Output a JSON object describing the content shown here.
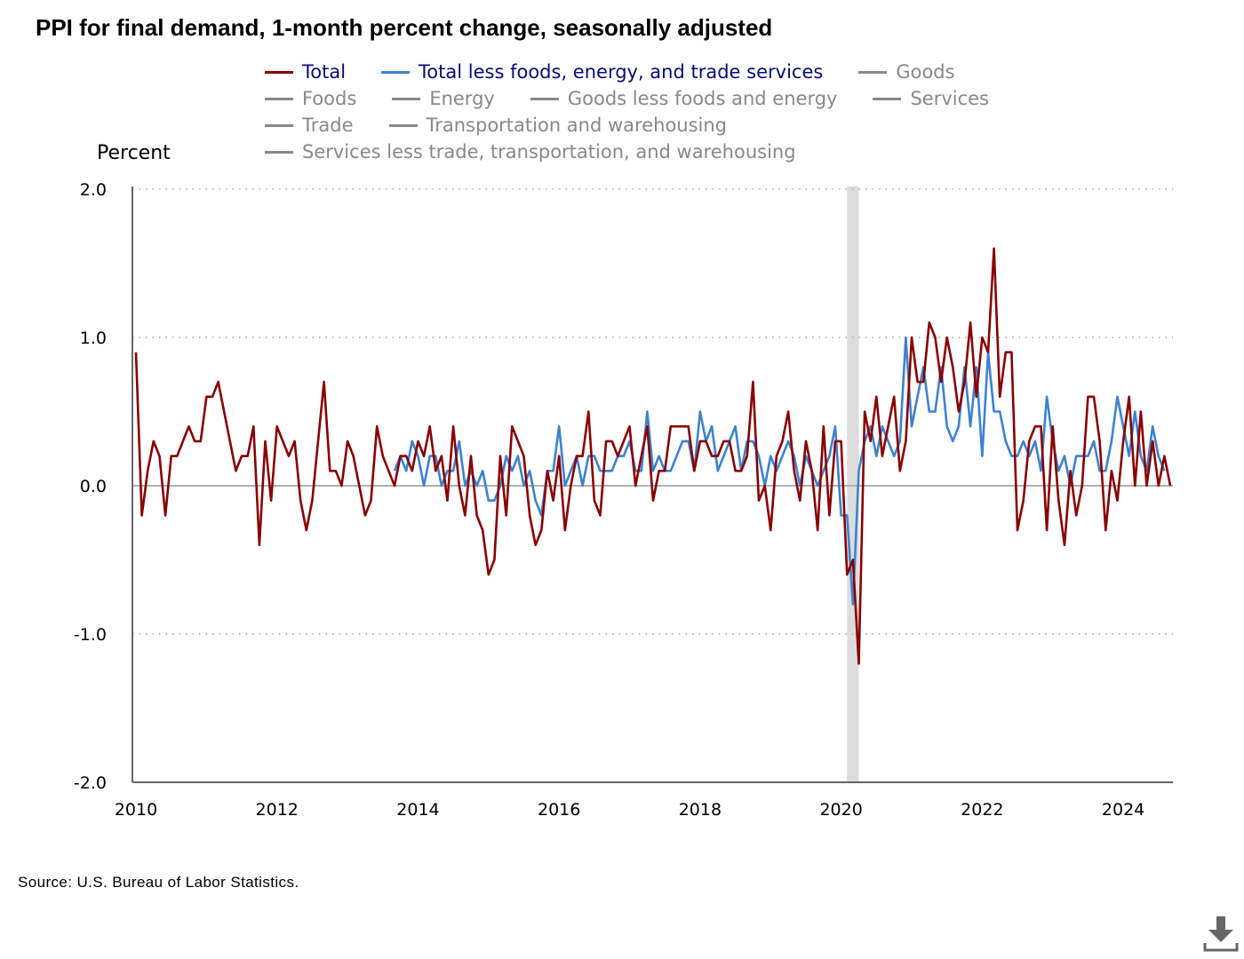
{
  "chart_data": {
    "type": "line",
    "title": "PPI for final demand, 1-month percent change, seasonally adjusted",
    "ylabel": "Percent",
    "xlabel": "",
    "ylim": [
      -2.0,
      2.0
    ],
    "x_range": [
      "2010-01",
      "2024-09"
    ],
    "y_ticks": [
      {
        "value": 2.0,
        "label": "2.0"
      },
      {
        "value": 1.0,
        "label": "1.0"
      },
      {
        "value": 0.0,
        "label": "0.0"
      },
      {
        "value": -1.0,
        "label": "-1.0"
      },
      {
        "value": -2.0,
        "label": "-2.0"
      }
    ],
    "x_ticks": [
      {
        "year": 2010,
        "label": "2010"
      },
      {
        "year": 2012,
        "label": "2012"
      },
      {
        "year": 2014,
        "label": "2014"
      },
      {
        "year": 2016,
        "label": "2016"
      },
      {
        "year": 2018,
        "label": "2018"
      },
      {
        "year": 2020,
        "label": "2020"
      },
      {
        "year": 2022,
        "label": "2022"
      },
      {
        "year": 2024,
        "label": "2024"
      }
    ],
    "grid": "horizontal dotted",
    "recession": {
      "start": "2020-02",
      "end": "2020-04"
    },
    "series": [
      {
        "name": "Total",
        "color": "#8b0000",
        "start": "2010-01",
        "values": [
          0.9,
          -0.2,
          0.1,
          0.3,
          0.2,
          -0.2,
          0.2,
          0.2,
          0.3,
          0.4,
          0.3,
          0.3,
          0.6,
          0.6,
          0.7,
          0.5,
          0.3,
          0.1,
          0.2,
          0.2,
          0.4,
          -0.4,
          0.3,
          -0.1,
          0.4,
          0.3,
          0.2,
          0.3,
          -0.1,
          -0.3,
          -0.1,
          0.3,
          0.7,
          0.1,
          0.1,
          0.0,
          0.3,
          0.2,
          0.0,
          -0.2,
          -0.1,
          0.4,
          0.2,
          0.1,
          0.0,
          0.2,
          0.2,
          0.1,
          0.3,
          0.2,
          0.4,
          0.1,
          0.2,
          -0.1,
          0.4,
          0.0,
          -0.2,
          0.2,
          -0.2,
          -0.3,
          -0.6,
          -0.5,
          0.2,
          -0.2,
          0.4,
          0.3,
          0.2,
          -0.2,
          -0.4,
          -0.3,
          0.1,
          -0.1,
          0.2,
          -0.3,
          0.0,
          0.2,
          0.2,
          0.5,
          -0.1,
          -0.2,
          0.3,
          0.3,
          0.2,
          0.3,
          0.4,
          0.0,
          0.2,
          0.4,
          -0.1,
          0.1,
          0.1,
          0.4,
          0.4,
          0.4,
          0.4,
          0.1,
          0.3,
          0.3,
          0.2,
          0.2,
          0.3,
          0.3,
          0.1,
          0.1,
          0.2,
          0.7,
          -0.1,
          0.0,
          -0.3,
          0.2,
          0.3,
          0.5,
          0.1,
          -0.1,
          0.3,
          0.1,
          -0.3,
          0.4,
          -0.2,
          0.3,
          0.3,
          -0.6,
          -0.5,
          -1.2,
          0.5,
          0.3,
          0.6,
          0.2,
          0.4,
          0.6,
          0.1,
          0.3,
          1.0,
          0.7,
          0.7,
          1.1,
          1.0,
          0.7,
          1.0,
          0.8,
          0.5,
          0.7,
          1.1,
          0.6,
          1.0,
          0.9,
          1.6,
          0.6,
          0.9,
          0.9,
          -0.3,
          -0.1,
          0.3,
          0.4,
          0.4,
          -0.3,
          0.4,
          -0.1,
          -0.4,
          0.1,
          -0.2,
          0.0,
          0.6,
          0.6,
          0.3,
          -0.3,
          0.1,
          -0.1,
          0.3,
          0.6,
          0.0,
          0.5,
          0.0,
          0.3,
          0.0,
          0.2,
          0.0
        ]
      },
      {
        "name": "Total less foods, energy, and trade services",
        "color": "#3b82d4",
        "start": "2013-09",
        "values": [
          0.1,
          0.2,
          0.1,
          0.3,
          0.2,
          0.0,
          0.2,
          0.2,
          0.0,
          0.1,
          0.1,
          0.3,
          0.0,
          0.1,
          0.0,
          0.1,
          -0.1,
          -0.1,
          0.0,
          0.2,
          0.1,
          0.2,
          0.0,
          0.1,
          -0.1,
          -0.2,
          0.1,
          0.1,
          0.4,
          0.0,
          0.1,
          0.2,
          0.0,
          0.2,
          0.2,
          0.1,
          0.1,
          0.1,
          0.2,
          0.2,
          0.3,
          0.1,
          0.1,
          0.5,
          0.1,
          0.2,
          0.1,
          0.1,
          0.2,
          0.3,
          0.3,
          0.1,
          0.5,
          0.3,
          0.4,
          0.1,
          0.2,
          0.3,
          0.4,
          0.1,
          0.3,
          0.3,
          0.2,
          0.0,
          0.2,
          0.1,
          0.2,
          0.3,
          0.2,
          0.0,
          0.2,
          0.1,
          0.0,
          0.1,
          0.2,
          0.4,
          -0.2,
          -0.2,
          -0.8,
          0.1,
          0.3,
          0.4,
          0.2,
          0.4,
          0.3,
          0.2,
          0.3,
          1.0,
          0.4,
          0.6,
          0.8,
          0.5,
          0.5,
          0.8,
          0.4,
          0.3,
          0.4,
          0.8,
          0.4,
          0.8,
          0.2,
          0.9,
          0.5,
          0.5,
          0.3,
          0.2,
          0.2,
          0.3,
          0.2,
          0.3,
          0.1,
          0.6,
          0.3,
          0.1,
          0.2,
          0.0,
          0.2,
          0.2,
          0.2,
          0.3,
          0.1,
          0.1,
          0.3,
          0.6,
          0.4,
          0.2,
          0.5,
          0.2,
          0.1,
          0.4,
          0.2,
          0.1
        ]
      }
    ],
    "legend": [
      {
        "label": "Total",
        "color": "#8b0000",
        "active": true
      },
      {
        "label": "Total less foods, energy, and trade services",
        "color": "#3b82d4",
        "active": true
      },
      {
        "label": "Goods",
        "color": "#888888",
        "active": false
      },
      {
        "label": "Foods",
        "color": "#888888",
        "active": false
      },
      {
        "label": "Energy",
        "color": "#888888",
        "active": false
      },
      {
        "label": "Goods less foods and energy",
        "color": "#888888",
        "active": false
      },
      {
        "label": "Services",
        "color": "#888888",
        "active": false
      },
      {
        "label": "Trade",
        "color": "#888888",
        "active": false
      },
      {
        "label": "Transportation and warehousing",
        "color": "#888888",
        "active": false
      },
      {
        "label": "Services less trade, transportation, and warehousing",
        "color": "#888888",
        "active": false
      }
    ]
  },
  "source": "Source: U.S. Bureau of Labor Statistics.",
  "download_icon": "download-icon"
}
